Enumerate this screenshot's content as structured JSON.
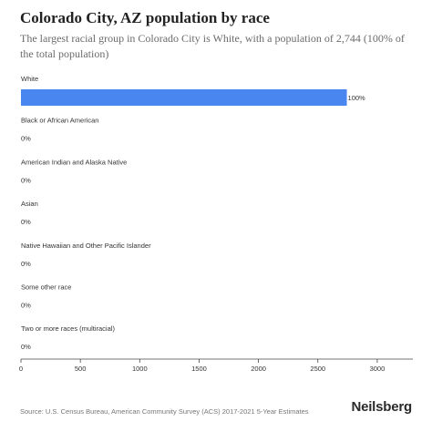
{
  "header": {
    "title": "Colorado City, AZ population by race",
    "subtitle": "The largest racial group in Colorado City is White, with a population of 2,744 (100% of the total population)"
  },
  "chart_data": {
    "type": "bar",
    "orientation": "horizontal",
    "categories": [
      "White",
      "Black or African American",
      "American Indian and Alaska Native",
      "Asian",
      "Native Hawaiian and Other Pacific Islander",
      "Some other race",
      "Two or more races (multiracial)"
    ],
    "values": [
      2744,
      0,
      0,
      0,
      0,
      0,
      0
    ],
    "data_labels": [
      "100%",
      "0%",
      "0%",
      "0%",
      "0%",
      "0%",
      "0%"
    ],
    "xlim": [
      0,
      3300
    ],
    "xticks": [
      0,
      500,
      1000,
      1500,
      2000,
      2500,
      3000
    ],
    "grid": false,
    "bar_color": "#4a86f0"
  },
  "footer": {
    "source": "Source: U.S. Census Bureau, American Community Survey (ACS) 2017-2021 5-Year Estimates",
    "brand": "Neilsberg"
  }
}
